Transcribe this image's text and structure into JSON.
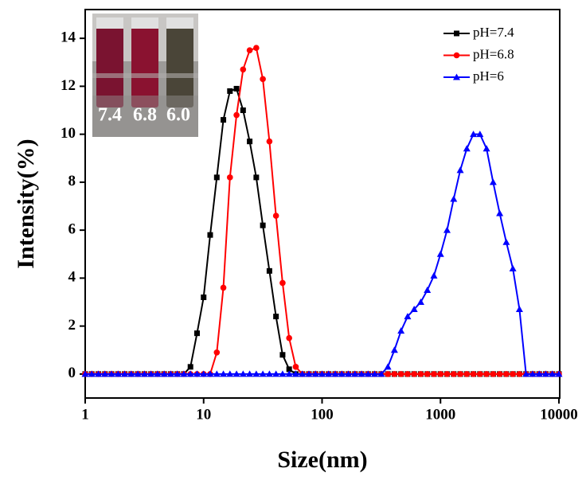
{
  "chart_data": {
    "type": "line",
    "xlabel": "Size(nm)",
    "ylabel": "Intensity(%)",
    "x": [
      1,
      1.136,
      1.292,
      1.468,
      1.668,
      1.896,
      2.154,
      2.448,
      2.783,
      3.162,
      3.594,
      4.084,
      4.642,
      5.275,
      5.995,
      6.813,
      7.743,
      8.799,
      10,
      11.36,
      12.92,
      14.68,
      16.68,
      18.96,
      21.54,
      24.48,
      27.83,
      31.62,
      35.94,
      40.84,
      46.42,
      52.75,
      59.95,
      68.13,
      77.43,
      87.99,
      100,
      113.6,
      129.2,
      146.8,
      166.8,
      189.6,
      215.4,
      244.8,
      278.3,
      316.2,
      359.4,
      408.4,
      464.2,
      527.5,
      599.5,
      681.3,
      774.3,
      879.9,
      1000,
      1136,
      1292,
      1468,
      1668,
      1896,
      2154,
      2448,
      2783,
      3162,
      3594,
      4084,
      4642,
      5275,
      5995,
      6813,
      7743,
      8799,
      10000
    ],
    "series": [
      {
        "name": "pH=7.4",
        "color": "#000000",
        "marker": "square",
        "values": [
          0,
          0,
          0,
          0,
          0,
          0,
          0,
          0,
          0,
          0,
          0,
          0,
          0,
          0,
          0,
          0,
          0.3,
          1.7,
          3.2,
          5.8,
          8.2,
          10.6,
          11.8,
          11.9,
          11.0,
          9.7,
          8.2,
          6.2,
          4.3,
          2.4,
          0.8,
          0.2,
          0,
          0,
          0,
          0,
          0,
          0,
          0,
          0,
          0,
          0,
          0,
          0,
          0,
          0,
          0,
          0,
          0,
          0,
          0,
          0,
          0,
          0,
          0,
          0,
          0,
          0,
          0,
          0,
          0,
          0,
          0,
          0,
          0,
          0,
          0,
          0,
          0,
          0,
          0,
          0,
          0
        ]
      },
      {
        "name": "pH=6.8",
        "color": "#ff0000",
        "marker": "circle",
        "values": [
          0,
          0,
          0,
          0,
          0,
          0,
          0,
          0,
          0,
          0,
          0,
          0,
          0,
          0,
          0,
          0,
          0,
          0,
          0,
          0,
          0.9,
          3.6,
          8.2,
          10.8,
          12.7,
          13.5,
          13.6,
          12.3,
          9.7,
          6.6,
          3.8,
          1.5,
          0.3,
          0,
          0,
          0,
          0,
          0,
          0,
          0,
          0,
          0,
          0,
          0,
          0,
          0,
          0,
          0,
          0,
          0,
          0,
          0,
          0,
          0,
          0,
          0,
          0,
          0,
          0,
          0,
          0,
          0,
          0,
          0,
          0,
          0,
          0,
          0,
          0,
          0,
          0,
          0,
          0
        ]
      },
      {
        "name": "pH=6",
        "color": "#0000ff",
        "marker": "triangle",
        "values": [
          0,
          0,
          0,
          0,
          0,
          0,
          0,
          0,
          0,
          0,
          0,
          0,
          0,
          0,
          0,
          0,
          0,
          0,
          0,
          0,
          0,
          0,
          0,
          0,
          0,
          0,
          0,
          0,
          0,
          0,
          0,
          0,
          0,
          0,
          0,
          0,
          0,
          0,
          0,
          0,
          0,
          0,
          0,
          0,
          0,
          0,
          0.3,
          1.0,
          1.8,
          2.4,
          2.7,
          3.0,
          3.5,
          4.1,
          5.0,
          6.0,
          7.3,
          8.5,
          9.4,
          10.0,
          10.0,
          9.4,
          8.0,
          6.7,
          5.5,
          4.4,
          2.7,
          0,
          0,
          0,
          0,
          0,
          0
        ]
      }
    ],
    "xlim": [
      1,
      10000
    ],
    "xticks": [
      1,
      10,
      100,
      1000,
      10000
    ],
    "xscale": "log",
    "ylim": [
      -1,
      15.2
    ],
    "yticks": [
      0,
      2,
      4,
      6,
      8,
      10,
      12,
      14
    ],
    "legend": "upper right",
    "annotations": [
      "7.4",
      "6.8",
      "6.0"
    ]
  }
}
